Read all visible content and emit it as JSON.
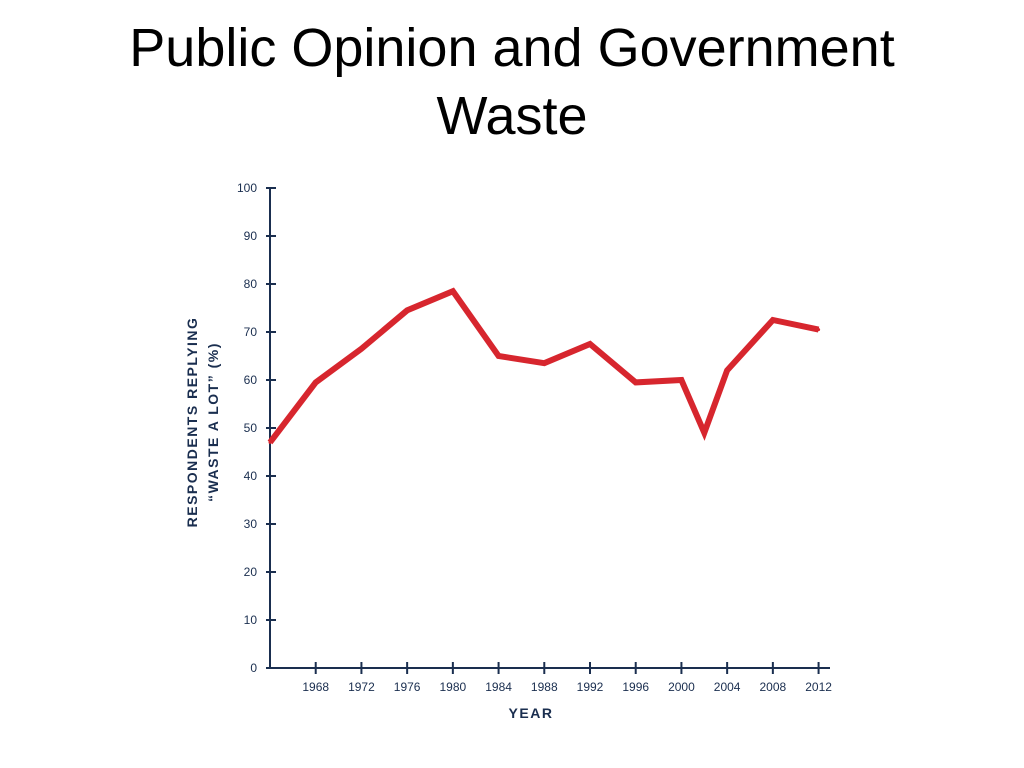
{
  "slide": {
    "title_line1": "Public Opinion and Government",
    "title_line2": "Waste"
  },
  "chart_data": {
    "type": "line",
    "title": "Public Opinion and Government Waste",
    "xlabel": "YEAR",
    "ylabel_line1": "RESPONDENTS REPLYING",
    "ylabel_line2": "“WASTE A LOT” (%)",
    "xlim": [
      1964,
      2013
    ],
    "ylim": [
      0,
      100
    ],
    "x_ticks": [
      1968,
      1972,
      1976,
      1980,
      1984,
      1988,
      1992,
      1996,
      2000,
      2004,
      2008,
      2012
    ],
    "y_ticks": [
      0,
      10,
      20,
      30,
      40,
      50,
      60,
      70,
      80,
      90,
      100
    ],
    "grid": false,
    "colors": {
      "line": "#d7262e",
      "axis": "#1a2e4f"
    },
    "series": [
      {
        "x": [
          1964,
          1968,
          1972,
          1976,
          1980,
          1984,
          1988,
          1992,
          1996,
          2000,
          2002,
          2004,
          2008,
          2012
        ],
        "values": [
          47,
          59.5,
          66.5,
          74.5,
          78.5,
          65,
          63.5,
          67.5,
          59.5,
          60,
          49,
          62,
          72.5,
          70.5
        ]
      }
    ]
  }
}
